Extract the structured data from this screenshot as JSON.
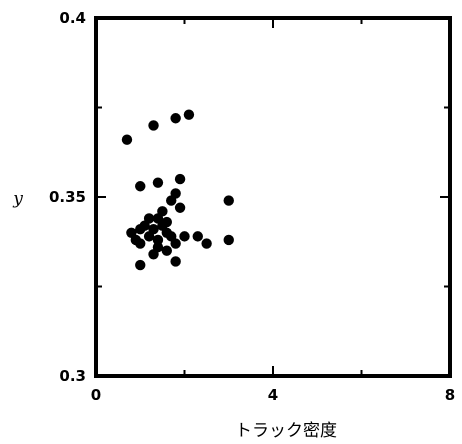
{
  "chart_data": {
    "type": "scatter",
    "title": "",
    "xlabel": "トラック密度",
    "ylabel": "y",
    "xlim": [
      0,
      8
    ],
    "ylim": [
      0.3,
      0.4
    ],
    "xticks": [
      0,
      4,
      8
    ],
    "xtick_labels": [
      "0",
      "4",
      "8"
    ],
    "yticks": [
      0.3,
      0.35,
      0.4
    ],
    "ytick_labels": [
      "0.3",
      "0.35",
      "0.4"
    ],
    "grid": false,
    "series": [
      {
        "marker_color": "#000000",
        "points": [
          [
            0.7,
            0.366
          ],
          [
            1.3,
            0.37
          ],
          [
            1.8,
            0.372
          ],
          [
            2.1,
            0.373
          ],
          [
            1.0,
            0.353
          ],
          [
            1.4,
            0.354
          ],
          [
            1.9,
            0.355
          ],
          [
            1.8,
            0.351
          ],
          [
            1.7,
            0.349
          ],
          [
            3.0,
            0.349
          ],
          [
            1.9,
            0.347
          ],
          [
            1.5,
            0.346
          ],
          [
            1.2,
            0.344
          ],
          [
            1.4,
            0.344
          ],
          [
            1.6,
            0.343
          ],
          [
            1.1,
            0.342
          ],
          [
            1.5,
            0.342
          ],
          [
            1.0,
            0.341
          ],
          [
            1.3,
            0.341
          ],
          [
            1.6,
            0.34
          ],
          [
            0.8,
            0.34
          ],
          [
            1.2,
            0.339
          ],
          [
            1.7,
            0.339
          ],
          [
            2.0,
            0.339
          ],
          [
            2.3,
            0.339
          ],
          [
            0.9,
            0.338
          ],
          [
            1.4,
            0.338
          ],
          [
            3.0,
            0.338
          ],
          [
            1.0,
            0.337
          ],
          [
            1.8,
            0.337
          ],
          [
            2.5,
            0.337
          ],
          [
            1.4,
            0.336
          ],
          [
            1.6,
            0.335
          ],
          [
            1.3,
            0.334
          ],
          [
            1.8,
            0.332
          ],
          [
            1.0,
            0.331
          ]
        ]
      }
    ]
  }
}
